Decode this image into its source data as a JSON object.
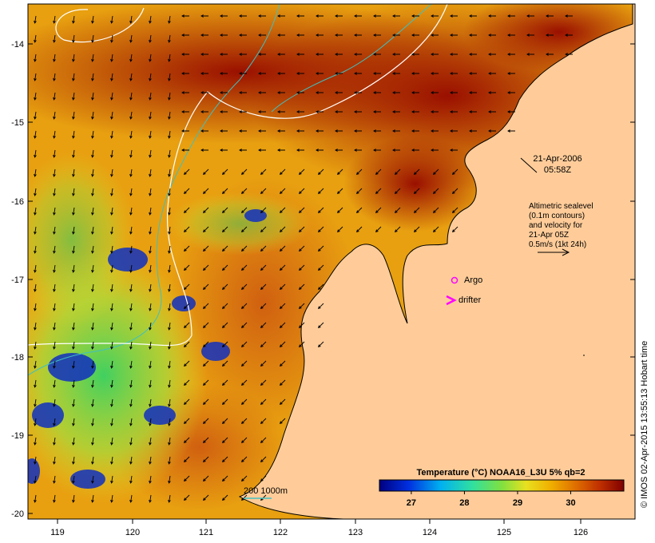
{
  "map": {
    "lon_ticks": [
      "119",
      "120",
      "121",
      "122",
      "123",
      "124",
      "125",
      "126"
    ],
    "lat_ticks": [
      "-14",
      "-15",
      "-16",
      "-17",
      "-18",
      "-19",
      "-20"
    ],
    "date_label": "21-Apr-2006",
    "time_label": "05:58Z",
    "altimetry_lines": [
      "Altimetric sealevel",
      "(0.1m contours)",
      "and velocity for",
      "21-Apr 05Z",
      "0.5m/s (1kt 24h)"
    ],
    "argo_label": "Argo",
    "drifter_label": "drifter",
    "bathy_label": "200  1000m",
    "credit": "© IMOS 02-Apr-2015 13:55:13 Hobart time"
  },
  "colorbar": {
    "title": "Temperature (°C) NOAA16_L3U 5% qb=2",
    "ticks": [
      "27",
      "28",
      "29",
      "30"
    ],
    "range": [
      26.4,
      31.0
    ]
  },
  "colors": {
    "land": "#ffcc99",
    "coast": "#000000",
    "contour": "#ffffff",
    "bathy": "#40c0c0",
    "argo": "#ff00ff",
    "drifter": "#ff00ff"
  }
}
